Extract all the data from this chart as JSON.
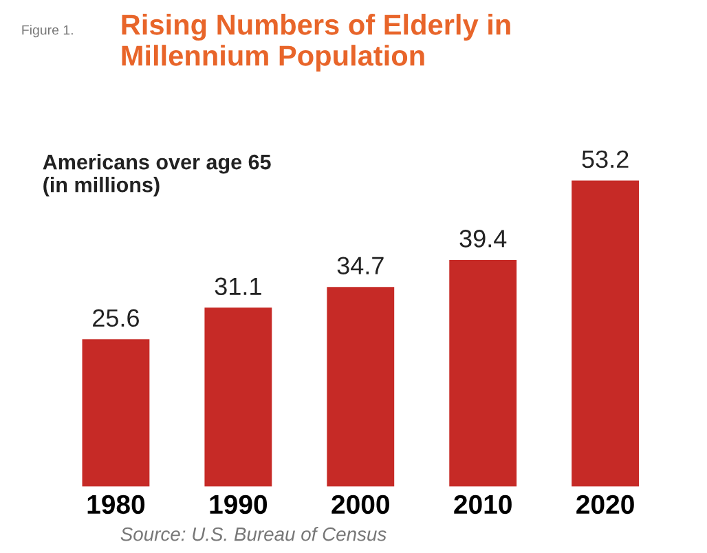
{
  "chart_data": {
    "type": "bar",
    "title": "Rising Numbers of Elderly in\nMillennium Population",
    "subtitle": "Americans over age 65\n(in millions)",
    "categories": [
      "1980",
      "1990",
      "2000",
      "2010",
      "2020"
    ],
    "values": [
      25.6,
      31.1,
      34.7,
      39.4,
      53.2
    ],
    "color": "#c62a26",
    "data_labels": true,
    "grid": false,
    "legend": false,
    "annotations": [
      "Figure 1.",
      "Source: U.S. Bureau of Census"
    ]
  }
}
